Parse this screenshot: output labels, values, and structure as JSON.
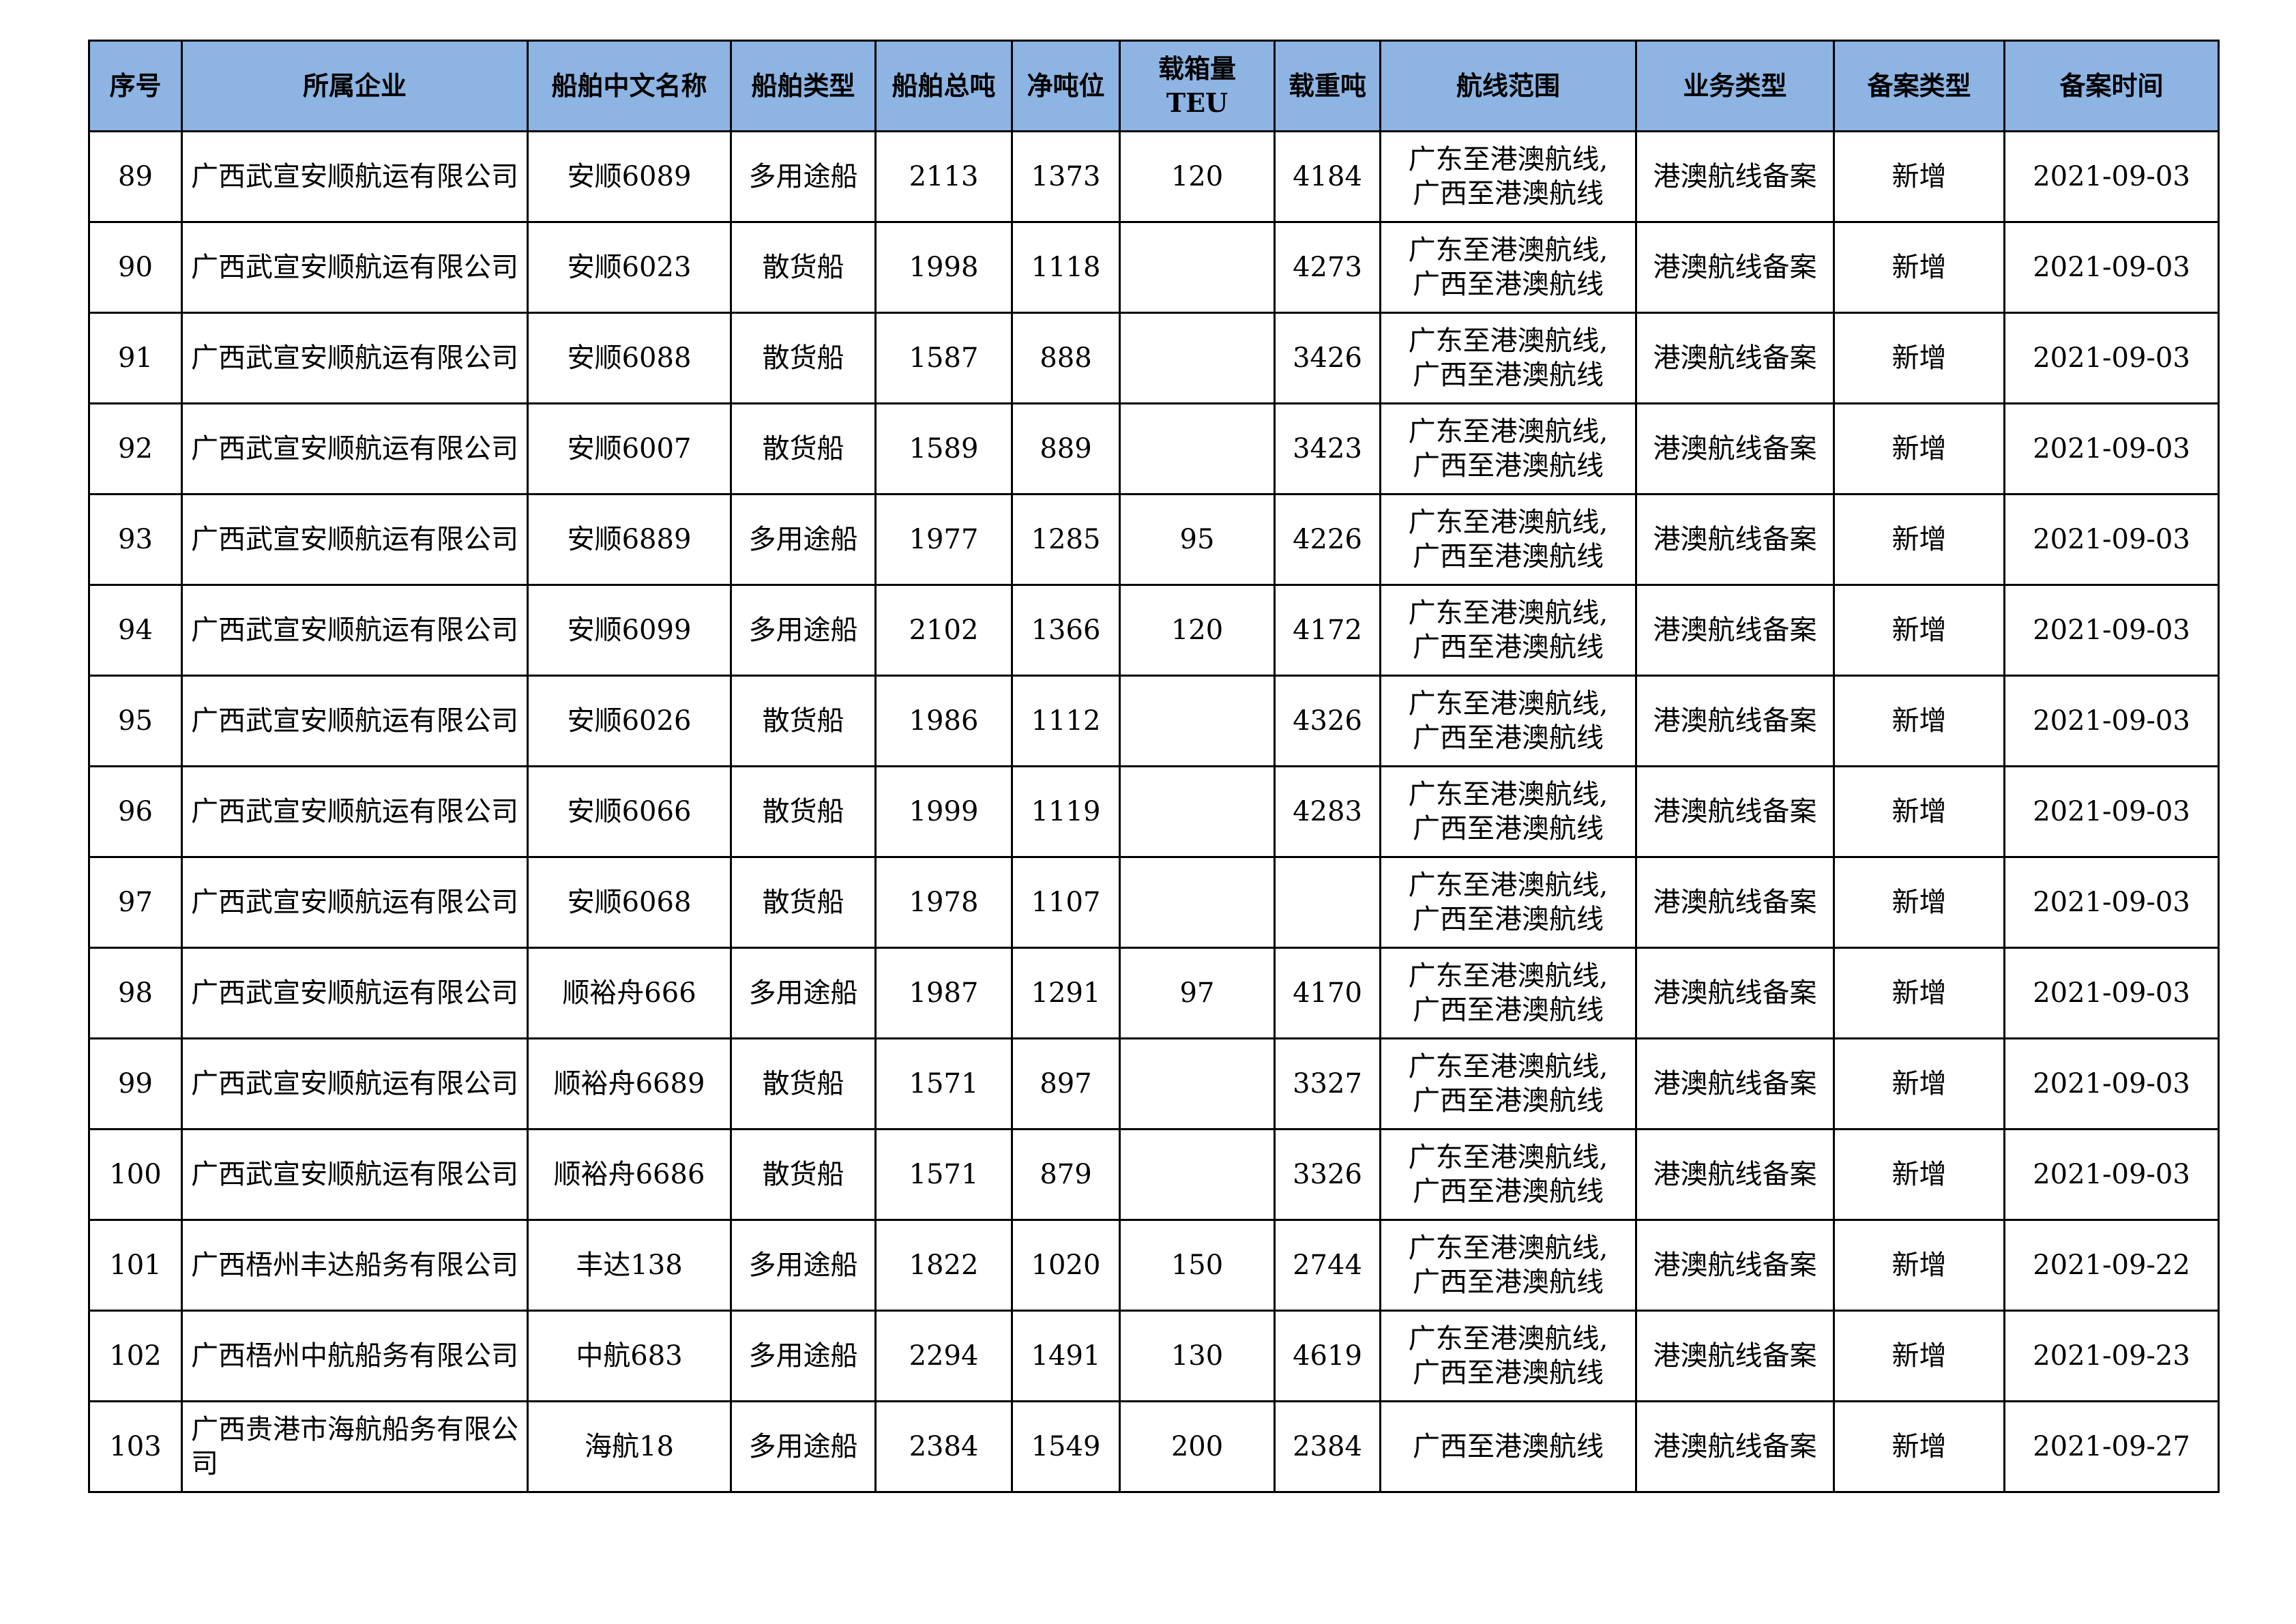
{
  "table": {
    "header": [
      "序号",
      "所属企业",
      "船舶中文名称",
      "船舶类型",
      "船舶总吨",
      "净吨位",
      "载箱量TEU",
      "载重吨",
      "航线范围",
      "业务类型",
      "备案类型",
      "备案时间"
    ],
    "rows": [
      [
        "89",
        "广西武宣安顺航运有限公司",
        "安顺6089",
        "多用途船",
        "2113",
        "1373",
        "120",
        "4184",
        "广东至港澳航线,\n广西至港澳航线",
        "港澳航线备案",
        "新增",
        "2021-09-03"
      ],
      [
        "90",
        "广西武宣安顺航运有限公司",
        "安顺6023",
        "散货船",
        "1998",
        "1118",
        null,
        "4273",
        "广东至港澳航线,\n广西至港澳航线",
        "港澳航线备案",
        "新增",
        "2021-09-03"
      ],
      [
        "91",
        "广西武宣安顺航运有限公司",
        "安顺6088",
        "散货船",
        "1587",
        "888",
        null,
        "3426",
        "广东至港澳航线,\n广西至港澳航线",
        "港澳航线备案",
        "新增",
        "2021-09-03"
      ],
      [
        "92",
        "广西武宣安顺航运有限公司",
        "安顺6007",
        "散货船",
        "1589",
        "889",
        null,
        "3423",
        "广东至港澳航线,\n广西至港澳航线",
        "港澳航线备案",
        "新增",
        "2021-09-03"
      ],
      [
        "93",
        "广西武宣安顺航运有限公司",
        "安顺6889",
        "多用途船",
        "1977",
        "1285",
        "95",
        "4226",
        "广东至港澳航线,\n广西至港澳航线",
        "港澳航线备案",
        "新增",
        "2021-09-03"
      ],
      [
        "94",
        "广西武宣安顺航运有限公司",
        "安顺6099",
        "多用途船",
        "2102",
        "1366",
        "120",
        "4172",
        "广东至港澳航线,\n广西至港澳航线",
        "港澳航线备案",
        "新增",
        "2021-09-03"
      ],
      [
        "95",
        "广西武宣安顺航运有限公司",
        "安顺6026",
        "散货船",
        "1986",
        "1112",
        null,
        "4326",
        "广东至港澳航线,\n广西至港澳航线",
        "港澳航线备案",
        "新增",
        "2021-09-03"
      ],
      [
        "96",
        "广西武宣安顺航运有限公司",
        "安顺6066",
        "散货船",
        "1999",
        "1119",
        null,
        "4283",
        "广东至港澳航线,\n广西至港澳航线",
        "港澳航线备案",
        "新增",
        "2021-09-03"
      ],
      [
        "97",
        "广西武宣安顺航运有限公司",
        "安顺6068",
        "散货船",
        "1978",
        "1107",
        null,
        null,
        "广东至港澳航线,\n广西至港澳航线",
        "港澳航线备案",
        "新增",
        "2021-09-03"
      ],
      [
        "98",
        "广西武宣安顺航运有限公司",
        "顺裕舟666",
        "多用途船",
        "1987",
        "1291",
        "97",
        "4170",
        "广东至港澳航线,\n广西至港澳航线",
        "港澳航线备案",
        "新增",
        "2021-09-03"
      ],
      [
        "99",
        "广西武宣安顺航运有限公司",
        "顺裕舟6689",
        "散货船",
        "1571",
        "897",
        null,
        "3327",
        "广东至港澳航线,\n广西至港澳航线",
        "港澳航线备案",
        "新增",
        "2021-09-03"
      ],
      [
        "100",
        "广西武宣安顺航运有限公司",
        "顺裕舟6686",
        "散货船",
        "1571",
        "879",
        null,
        "3326",
        "广东至港澳航线,\n广西至港澳航线",
        "港澳航线备案",
        "新增",
        "2021-09-03"
      ],
      [
        "101",
        "广西梧州丰达船务有限公司",
        "丰达138",
        "多用途船",
        "1822",
        "1020",
        "150",
        "2744",
        "广东至港澳航线,\n广西至港澳航线",
        "港澳航线备案",
        "新增",
        "2021-09-22"
      ],
      [
        "102",
        "广西梧州中航船务有限公司",
        "中航683",
        "多用途船",
        "2294",
        "1491",
        "130",
        "4619",
        "广东至港澳航线,\n广西至港澳航线",
        "港澳航线备案",
        "新增",
        "2021-09-23"
      ],
      [
        "103",
        "广西贵港市海航船务有限公司",
        "海航18",
        "多用途船",
        "2384",
        "1549",
        "200",
        "2384",
        "广西至港澳航线",
        "港澳航线备案",
        "新增",
        "2021-09-27"
      ]
    ]
  }
}
